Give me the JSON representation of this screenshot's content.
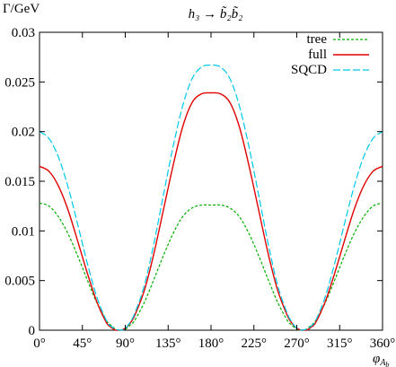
{
  "chart_data": {
    "type": "line",
    "title": "h₃ → b̃₂b̃₂",
    "ylabel": "Γ/GeV",
    "xlabel": "φ",
    "xlabel_sub": "A",
    "xlabel_subsub": "b",
    "xlim": [
      0,
      360
    ],
    "ylim": [
      0,
      0.03
    ],
    "x_ticks": [
      0,
      45,
      90,
      135,
      180,
      225,
      270,
      315,
      360
    ],
    "x_tick_labels": [
      "0°",
      "45°",
      "90°",
      "135°",
      "180°",
      "225°",
      "270°",
      "315°",
      "360°"
    ],
    "y_ticks": [
      0,
      0.005,
      0.01,
      0.015,
      0.02,
      0.025,
      0.03
    ],
    "y_tick_labels": [
      "0",
      "0.005",
      "0.01",
      "0.015",
      "0.02",
      "0.025",
      "0.03"
    ],
    "grid": false,
    "legend_position": "top-right",
    "series": [
      {
        "name": "tree",
        "color": "#00b000",
        "dash": "short-dash",
        "x": [
          0,
          10,
          20,
          30,
          40,
          50,
          60,
          70,
          75,
          80,
          85,
          90,
          95,
          100,
          110,
          120,
          130,
          140,
          150,
          160,
          170,
          180,
          190,
          200,
          210,
          220,
          230,
          240,
          250,
          260,
          265,
          270,
          275,
          280,
          285,
          290,
          300,
          310,
          320,
          330,
          340,
          350,
          360
        ],
        "values": [
          0.0128,
          0.0125,
          0.0114,
          0.0097,
          0.0075,
          0.0051,
          0.0028,
          0.001,
          0.0005,
          0.0001,
          0.0,
          0.0001,
          0.0005,
          0.001,
          0.0028,
          0.0051,
          0.0075,
          0.0097,
          0.0114,
          0.0123,
          0.0126,
          0.0126,
          0.0126,
          0.0123,
          0.0114,
          0.0097,
          0.0075,
          0.0051,
          0.0028,
          0.001,
          0.0005,
          0.0001,
          0.0,
          0.0001,
          0.0005,
          0.001,
          0.0028,
          0.0051,
          0.0075,
          0.0097,
          0.0114,
          0.0125,
          0.0128
        ]
      },
      {
        "name": "full",
        "color": "#e00000",
        "dash": "solid",
        "x": [
          0,
          10,
          20,
          30,
          40,
          50,
          60,
          70,
          75,
          80,
          85,
          90,
          95,
          100,
          110,
          120,
          130,
          140,
          150,
          160,
          170,
          180,
          190,
          200,
          210,
          220,
          230,
          240,
          250,
          260,
          265,
          270,
          275,
          280,
          285,
          290,
          300,
          310,
          320,
          330,
          340,
          350,
          360
        ],
        "values": [
          0.0165,
          0.016,
          0.0145,
          0.0121,
          0.009,
          0.0058,
          0.0029,
          0.0008,
          0.0003,
          0.0,
          0.0,
          0.0002,
          0.0007,
          0.0015,
          0.004,
          0.0077,
          0.0121,
          0.0165,
          0.0204,
          0.0229,
          0.0238,
          0.0239,
          0.0238,
          0.0229,
          0.0204,
          0.0165,
          0.0121,
          0.0077,
          0.004,
          0.0015,
          0.0007,
          0.0002,
          0.0,
          0.0,
          0.0003,
          0.0008,
          0.0029,
          0.0058,
          0.009,
          0.0121,
          0.0145,
          0.016,
          0.0165
        ]
      },
      {
        "name": "SQCD",
        "color": "#00c8e8",
        "dash": "long-dash",
        "x": [
          0,
          10,
          20,
          30,
          40,
          50,
          60,
          70,
          75,
          80,
          85,
          90,
          95,
          100,
          110,
          120,
          130,
          140,
          150,
          160,
          170,
          180,
          190,
          200,
          210,
          220,
          230,
          240,
          250,
          260,
          265,
          270,
          275,
          280,
          285,
          290,
          300,
          310,
          320,
          330,
          340,
          350,
          360
        ],
        "values": [
          0.02,
          0.0193,
          0.0174,
          0.0144,
          0.0107,
          0.0068,
          0.0034,
          0.001,
          0.0004,
          0.0001,
          0.0,
          0.0002,
          0.0008,
          0.0017,
          0.0045,
          0.0087,
          0.0136,
          0.0184,
          0.0225,
          0.0253,
          0.0265,
          0.0267,
          0.0265,
          0.0253,
          0.0225,
          0.0184,
          0.0136,
          0.0087,
          0.0045,
          0.0017,
          0.0008,
          0.0002,
          0.0,
          0.0001,
          0.0004,
          0.001,
          0.0034,
          0.0068,
          0.0107,
          0.0144,
          0.0174,
          0.0193,
          0.02
        ]
      }
    ]
  }
}
